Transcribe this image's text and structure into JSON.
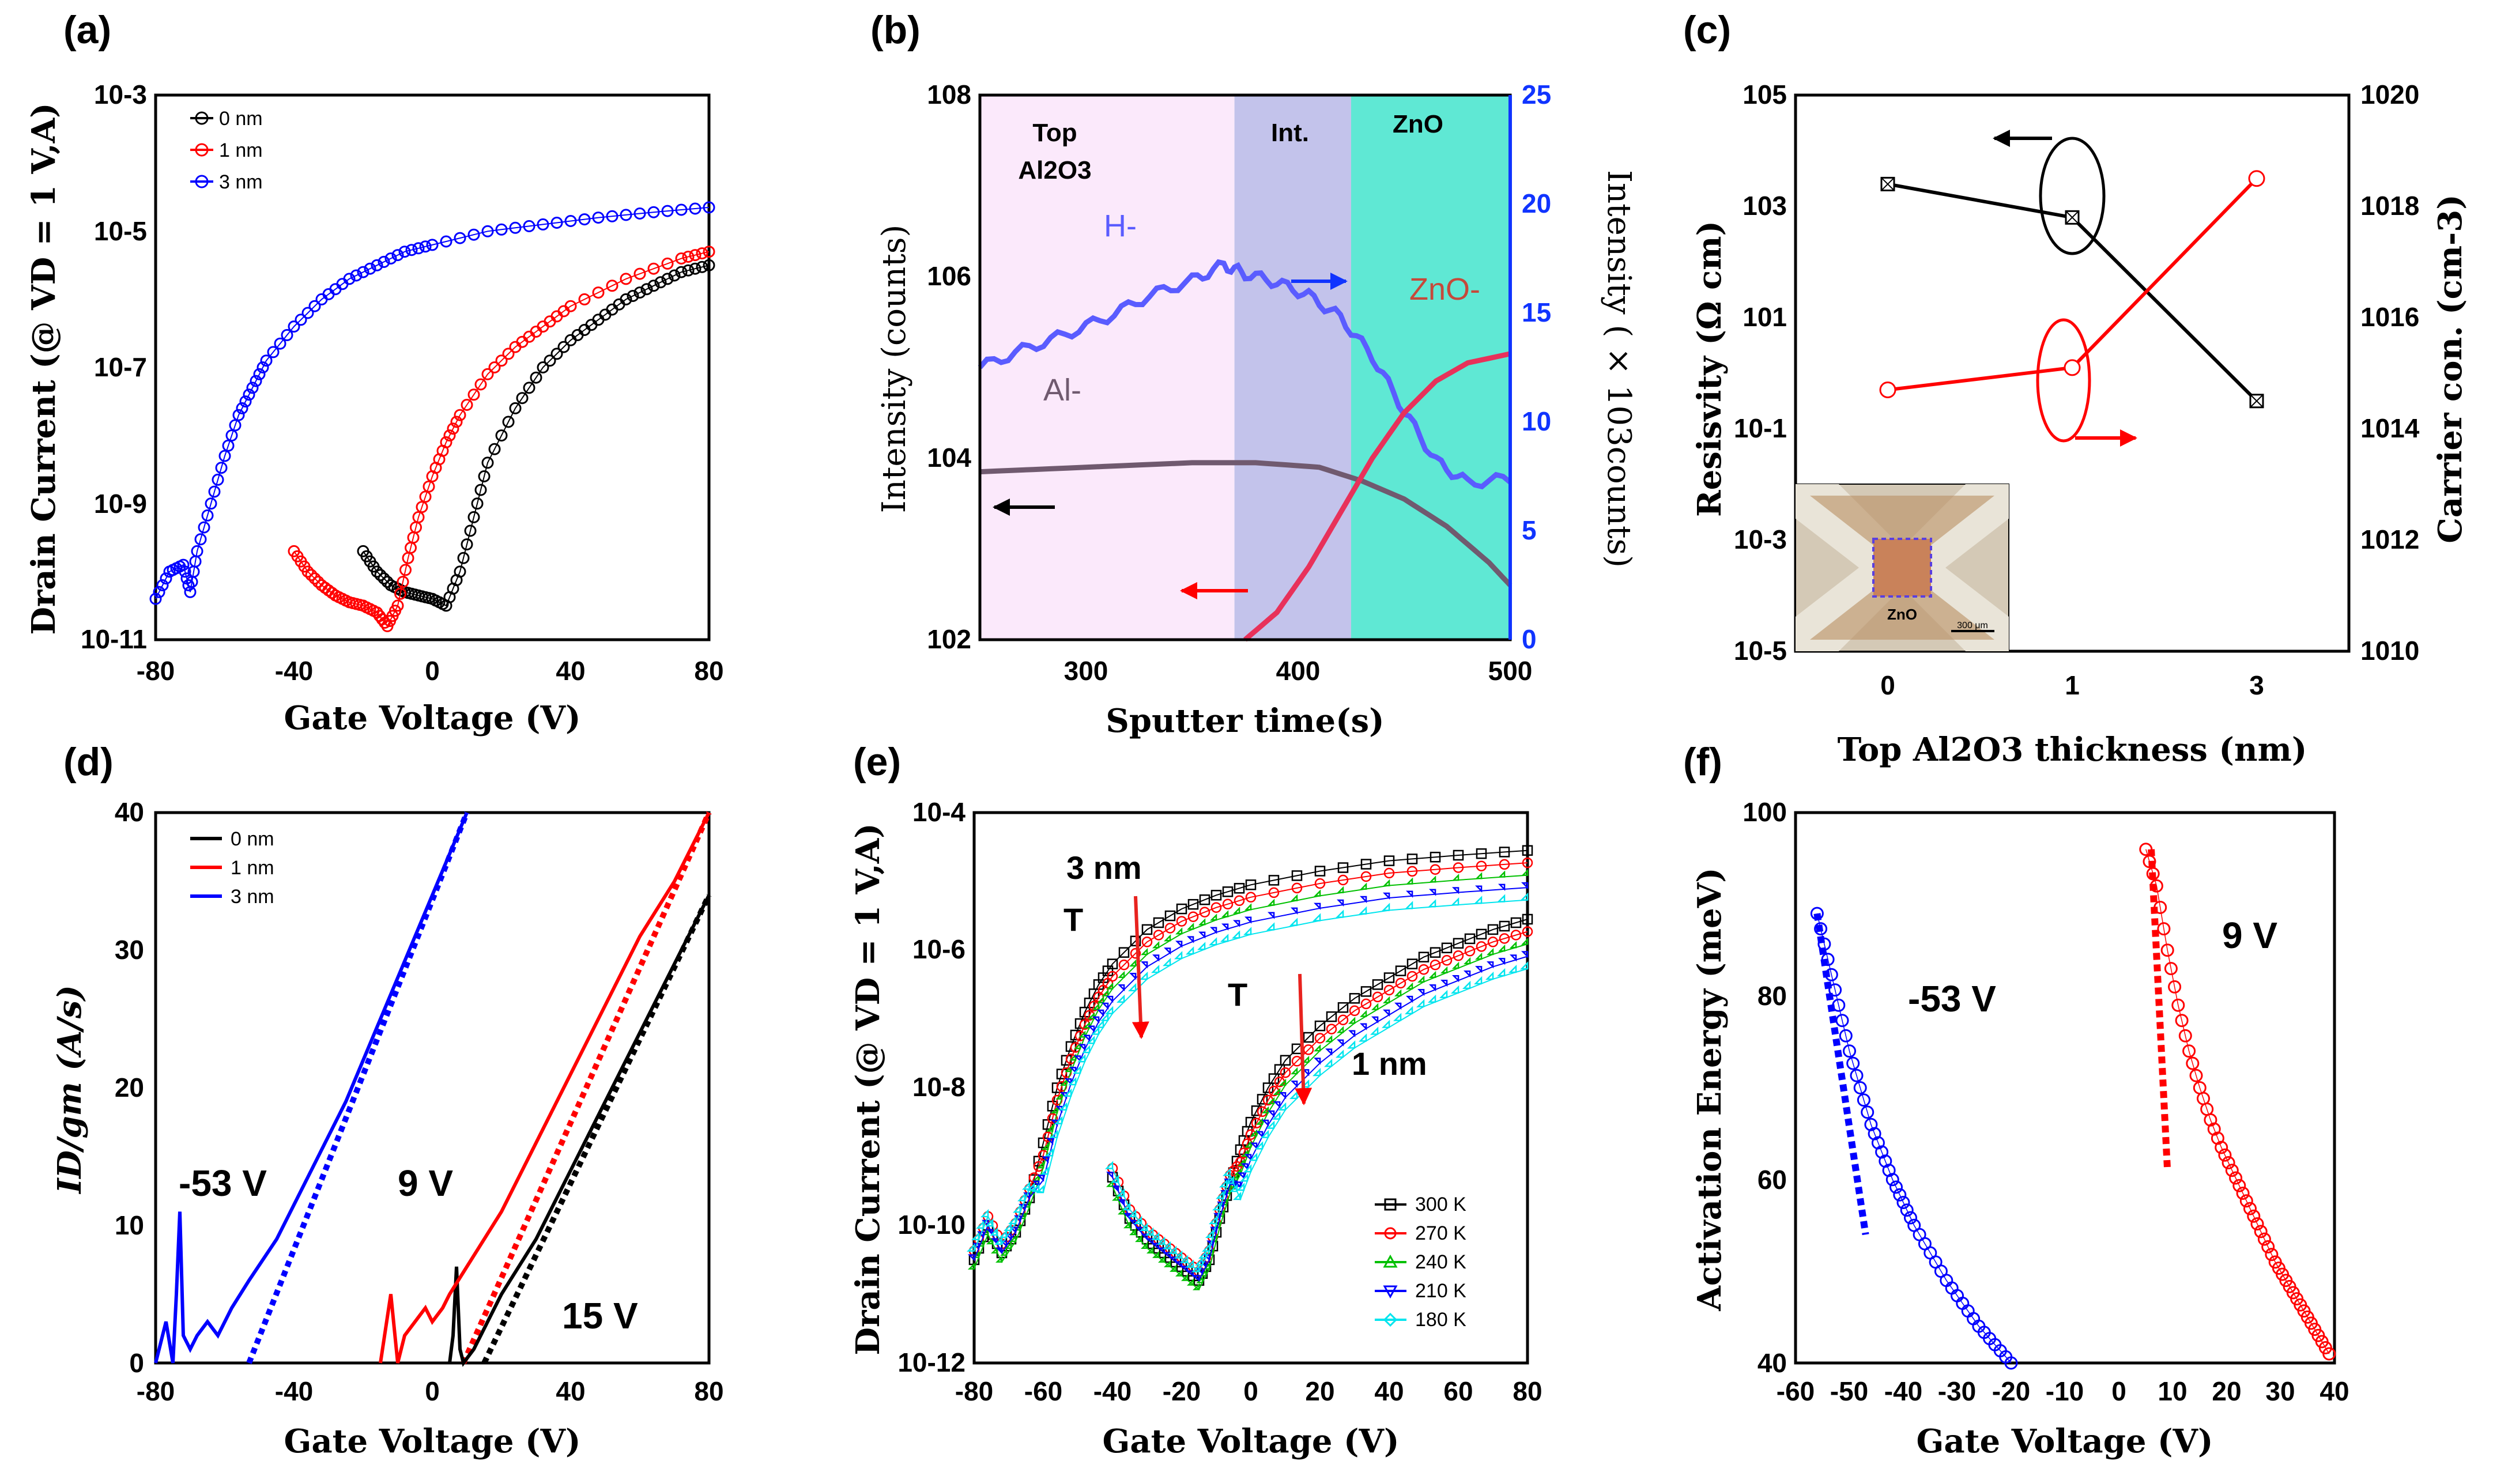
{
  "figure": {
    "panels": [
      "(a)",
      "(b)",
      "(c)",
      "(d)",
      "(e)",
      "(f)"
    ]
  },
  "chart_data": [
    {
      "id": "a",
      "type": "scatter",
      "title": "(a)",
      "xlabel": "Gate Voltage (V)",
      "ylabel": "Drain Current (@ VD = 1 V,A)",
      "xlim": [
        -80,
        80
      ],
      "ylim_log10": [
        -11,
        -3
      ],
      "yscale": "log",
      "xticks": [
        "-80",
        "-40",
        "0",
        "40",
        "80"
      ],
      "yticks": [
        "10-11",
        "10-9",
        "10-7",
        "10-5",
        "10-3"
      ],
      "legend": [
        "0 nm",
        "1 nm",
        "3 nm"
      ],
      "series": [
        {
          "name": "0 nm",
          "color": "#000000",
          "x": [
            -20,
            -16,
            -12,
            -8,
            -4,
            0,
            4,
            8,
            12,
            16,
            24,
            32,
            40,
            48,
            56,
            64,
            72,
            80
          ],
          "log10y": [
            -9.7,
            -10.0,
            -10.2,
            -10.3,
            -10.35,
            -10.4,
            -10.5,
            -10.0,
            -9.2,
            -8.4,
            -7.6,
            -7.0,
            -6.6,
            -6.3,
            -6.0,
            -5.8,
            -5.6,
            -5.5
          ]
        },
        {
          "name": "1 nm",
          "color": "#ff0000",
          "x": [
            -40,
            -36,
            -32,
            -28,
            -24,
            -20,
            -16,
            -13,
            -10,
            -7,
            -4,
            0,
            4,
            8,
            16,
            24,
            32,
            40,
            56,
            72,
            80
          ],
          "log10y": [
            -9.7,
            -10.0,
            -10.2,
            -10.35,
            -10.45,
            -10.5,
            -10.6,
            -10.8,
            -10.5,
            -9.8,
            -9.2,
            -8.6,
            -8.1,
            -7.7,
            -7.1,
            -6.7,
            -6.4,
            -6.1,
            -5.7,
            -5.4,
            -5.3
          ]
        },
        {
          "name": "3 nm",
          "color": "#0000ff",
          "x": [
            -80,
            -76,
            -72,
            -70,
            -68,
            -64,
            -60,
            -56,
            -52,
            -48,
            -40,
            -32,
            -24,
            -16,
            -8,
            0,
            16,
            32,
            48,
            64,
            80
          ],
          "log10y": [
            -10.4,
            -10.0,
            -9.9,
            -10.3,
            -9.7,
            -9.0,
            -8.3,
            -7.7,
            -7.3,
            -6.9,
            -6.4,
            -6.0,
            -5.7,
            -5.5,
            -5.3,
            -5.2,
            -5.0,
            -4.9,
            -4.8,
            -4.72,
            -4.65
          ]
        }
      ]
    },
    {
      "id": "b",
      "type": "line",
      "title": "(b)",
      "xlabel": "Sputter time(s)",
      "ylabel": "Intensity (counts)",
      "ylabel_right": "Intensity ( × 103counts)",
      "xlim": [
        250,
        500
      ],
      "ylim_log10": [
        2,
        8
      ],
      "yscale": "log",
      "ylim_right": [
        0,
        25
      ],
      "xticks": [
        "300",
        "400",
        "500"
      ],
      "yticks": [
        "102",
        "104",
        "106",
        "108"
      ],
      "yticks_right": [
        "0",
        "5",
        "10",
        "15",
        "20",
        "25"
      ],
      "regions": [
        {
          "name": "Top Al2O3",
          "x": [
            250,
            370
          ],
          "color": "#fbe9fb"
        },
        {
          "name": "Int.",
          "x": [
            370,
            425
          ],
          "color": "#c3c3eb"
        },
        {
          "name": "ZnO",
          "x": [
            425,
            500
          ],
          "color": "#5fe8d4"
        }
      ],
      "region_labels": {
        "top": "Top",
        "al2o3": "Al2O3",
        "int": "Int.",
        "zno": "ZnO"
      },
      "series_labels": {
        "h": "H-",
        "al": "Al-",
        "zno": "ZnO-"
      },
      "series": [
        {
          "name": "H-",
          "axis": "right",
          "color": "#5a5cff",
          "x": [
            250,
            270,
            290,
            310,
            330,
            350,
            365,
            375,
            390,
            405,
            420,
            435,
            450,
            465,
            480,
            500
          ],
          "y": [
            12.5,
            13.3,
            14.0,
            14.8,
            15.8,
            16.5,
            17.2,
            16.8,
            16.4,
            15.8,
            14.8,
            13.0,
            10.5,
            8.2,
            7.2,
            7.4
          ]
        },
        {
          "name": "Al-",
          "axis": "left",
          "color": "#705a6f",
          "x": [
            250,
            300,
            350,
            380,
            410,
            430,
            450,
            470,
            490,
            500
          ],
          "log10y": [
            3.85,
            3.9,
            3.95,
            3.95,
            3.9,
            3.75,
            3.55,
            3.25,
            2.85,
            2.6
          ]
        },
        {
          "name": "ZnO-",
          "axis": "left",
          "color": "#e8315a",
          "x": [
            375,
            390,
            405,
            420,
            435,
            450,
            465,
            480,
            500
          ],
          "log10y": [
            2.0,
            2.3,
            2.8,
            3.4,
            4.0,
            4.5,
            4.85,
            5.05,
            5.15
          ]
        }
      ]
    },
    {
      "id": "c",
      "type": "line",
      "title": "(c)",
      "xlabel": "Top Al2O3 thickness (nm)",
      "ylabel": "Resisvity  (Ω cm)",
      "ylabel_right": "Carrier con. (cm-3)",
      "categories": [
        "0",
        "1",
        "3"
      ],
      "ylim_log10": [
        -5,
        5
      ],
      "ylim_right_log10": [
        10,
        20
      ],
      "yticks": [
        "10-5",
        "10-3",
        "10-1",
        "101",
        "103",
        "105"
      ],
      "yticks_right": [
        "1010",
        "1012",
        "1014",
        "1016",
        "1018",
        "1020"
      ],
      "series": [
        {
          "name": "Resistivity",
          "axis": "left",
          "color": "#000000",
          "values_log10": [
            3.4,
            2.8,
            -0.5
          ]
        },
        {
          "name": "Carrier con.",
          "axis": "right",
          "color": "#ff0000",
          "values_log10": [
            14.7,
            15.1,
            18.5
          ]
        }
      ],
      "inset": {
        "label": "ZnO",
        "scale_text": "300 μm"
      }
    },
    {
      "id": "d",
      "type": "line",
      "title": "(d)",
      "xlabel": "Gate Voltage (V)",
      "ylabel": "ID/gm (A/s)",
      "xlim": [
        -80,
        80
      ],
      "ylim": [
        0,
        40
      ],
      "xticks": [
        "-80",
        "-40",
        "0",
        "40",
        "80"
      ],
      "yticks": [
        "0",
        "10",
        "20",
        "30",
        "40"
      ],
      "legend": [
        "0 nm",
        "1 nm",
        "3 nm"
      ],
      "annotations": [
        "-53 V",
        "9 V",
        "15 V"
      ],
      "series": [
        {
          "name": "0 nm",
          "color": "#000000",
          "x": [
            5,
            6,
            7,
            8,
            9,
            12,
            20,
            30,
            40,
            50,
            60,
            70,
            80
          ],
          "y": [
            0,
            2,
            7,
            1,
            0,
            1,
            5,
            9,
            14,
            19,
            24,
            29,
            34
          ]
        },
        {
          "name": "1 nm",
          "color": "#ff0000",
          "x": [
            -15,
            -12,
            -10,
            -8,
            -5,
            -2,
            0,
            3,
            5,
            10,
            20,
            30,
            40,
            50,
            60,
            70,
            80
          ],
          "y": [
            0,
            5,
            0,
            2,
            3,
            4,
            3,
            4,
            5,
            7,
            11,
            16,
            21,
            26,
            31,
            35,
            40
          ]
        },
        {
          "name": "3 nm",
          "color": "#0000ff",
          "x": [
            -80,
            -77,
            -75,
            -74,
            -73,
            -72,
            -70,
            -68,
            -65,
            -62,
            -58,
            -53,
            -45,
            -35,
            -25,
            -15,
            -5,
            5,
            10
          ],
          "y": [
            0,
            3,
            0,
            5,
            11,
            2,
            1,
            2,
            3,
            2,
            4,
            6,
            9,
            14,
            19,
            25,
            31,
            37,
            40
          ]
        }
      ],
      "fits": [
        {
          "name": "0 nm fit",
          "color": "#000000",
          "x": [
            15,
            80
          ],
          "y": [
            0,
            34
          ]
        },
        {
          "name": "1 nm fit",
          "color": "#ff0000",
          "x": [
            9,
            80
          ],
          "y": [
            0,
            40
          ]
        },
        {
          "name": "3 nm fit",
          "color": "#0000ff",
          "x": [
            -53,
            10
          ],
          "y": [
            0,
            40
          ]
        }
      ]
    },
    {
      "id": "e",
      "type": "scatter",
      "title": "(e)",
      "xlabel": "Gate Voltage (V)",
      "ylabel": "Drain Current (@ VD = 1 V,A)",
      "xlim": [
        -80,
        80
      ],
      "ylim_log10": [
        -12,
        -4
      ],
      "yscale": "log",
      "xticks": [
        "-80",
        "-60",
        "-40",
        "-20",
        "0",
        "20",
        "40",
        "60",
        "80"
      ],
      "yticks": [
        "10-12",
        "10-10",
        "10-8",
        "10-6",
        "10-4"
      ],
      "legend": [
        "300 K",
        "270 K",
        "240 K",
        "210 K",
        "180 K"
      ],
      "legend_colors": [
        "#000000",
        "#ff0000",
        "#00c000",
        "#0000ff",
        "#00e5ee"
      ],
      "annotations": [
        "3 nm",
        "1 nm",
        "T",
        "T"
      ]
    },
    {
      "id": "f",
      "type": "scatter",
      "title": "(f)",
      "xlabel": "Gate Voltage (V)",
      "ylabel": "Activation Energy (meV)",
      "xlim": [
        -60,
        40
      ],
      "ylim": [
        40,
        100
      ],
      "xticks": [
        "-60",
        "-50",
        "-40",
        "-30",
        "-20",
        "-10",
        "0",
        "10",
        "20",
        "30",
        "40"
      ],
      "yticks": [
        "40",
        "60",
        "80",
        "100"
      ],
      "annotations": [
        "-53 V",
        "9 V"
      ],
      "series": [
        {
          "name": "3 nm",
          "color": "#0000ff",
          "x": [
            -56,
            -54,
            -52,
            -50,
            -48,
            -46,
            -44,
            -42,
            -40,
            -38,
            -35,
            -32,
            -29,
            -26,
            -23,
            -20
          ],
          "y": [
            89,
            84,
            79,
            74,
            70,
            66,
            63,
            60,
            57.5,
            55,
            52,
            49,
            46.5,
            44,
            42,
            40
          ]
        },
        {
          "name": "1 nm",
          "color": "#ff0000",
          "x": [
            5,
            7,
            9,
            11,
            13,
            15,
            17,
            19,
            21,
            23,
            25,
            27,
            29,
            31,
            33,
            35,
            37,
            39
          ],
          "y": [
            96,
            92,
            85,
            79,
            74,
            70,
            66.5,
            63.5,
            61,
            58.5,
            56,
            53.5,
            51,
            49,
            47,
            45,
            43,
            41
          ]
        }
      ],
      "fits": [
        {
          "name": "-53 V fit",
          "color": "#0000ff",
          "x": [
            -56,
            -47
          ],
          "y": [
            89,
            54
          ]
        },
        {
          "name": "9 V fit",
          "color": "#ff0000",
          "x": [
            6,
            9
          ],
          "y": [
            96,
            61
          ]
        }
      ]
    }
  ]
}
